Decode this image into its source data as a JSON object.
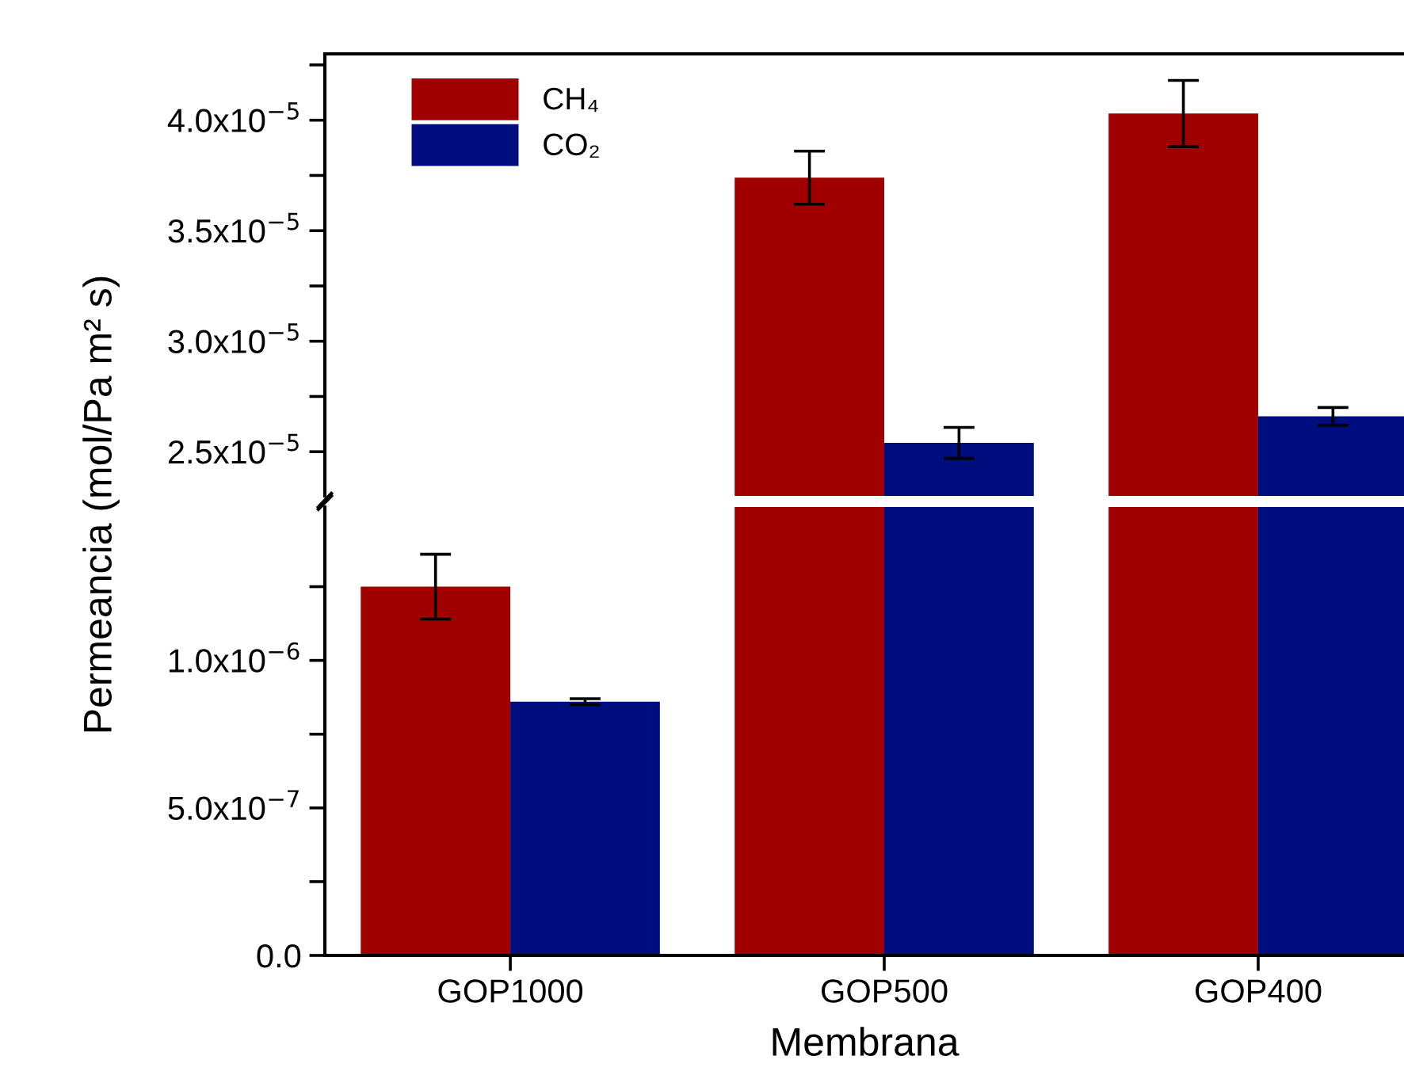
{
  "chart_data": [
    {
      "type": "bar",
      "ylabel": "Permeancia (mol/Pa m² s)",
      "categories": [
        null,
        null,
        null
      ],
      "legend": "top left",
      "grid": false,
      "tick_labels": "y",
      "series": [
        {
          "name": "CH₄",
          "color": "#a00000",
          "values": [
            null,
            3.74e-05,
            4.03e-05
          ],
          "errors": [
            null,
            1.2e-06,
            1.5e-06
          ]
        },
        {
          "name": "CO₂",
          "color": "#000d7f",
          "values": [
            null,
            2.54e-05,
            2.66e-05
          ],
          "errors": [
            null,
            7e-07,
            4e-07
          ]
        }
      ],
      "ylim": [
        2.3e-05,
        4.3e-05
      ],
      "yticks": [
        {
          "value": 2.5e-05,
          "label": "2.5x10$^{−5}$"
        },
        {
          "value": 2.75e-05,
          "label": null
        },
        {
          "value": 3e-05,
          "label": "3.0x10$^{−5}$"
        },
        {
          "value": 3.25e-05,
          "label": null
        },
        {
          "value": 3.5e-05,
          "label": "3.5x10$^{−5}$"
        },
        {
          "value": 3.75e-05,
          "label": null
        },
        {
          "value": 4e-05,
          "label": "4.0x10$^{−5}$"
        },
        {
          "value": 4.25e-05,
          "label": null
        }
      ]
    },
    {
      "type": "bar",
      "xlabel": "Membrana",
      "categories": [
        "GOP1000",
        "GOP500",
        "GOP400"
      ],
      "grid": false,
      "series": [
        {
          "color": "#a00000",
          "values": [
            1.25e-06,
            null,
            null
          ],
          "errors": [
            1.1e-07,
            null,
            null
          ]
        },
        {
          "color": "#000d7f",
          "values": [
            8.6e-07,
            null,
            null
          ],
          "errors": [
            1e-08,
            null,
            null
          ]
        }
      ],
      "ylim": [
        0,
        1.52e-06
      ],
      "yticks": [
        {
          "value": 0,
          "label": "0.0"
        },
        {
          "value": 2.5e-07,
          "label": null
        },
        {
          "value": 5e-07,
          "label": "5.0x10$^{−7}$"
        },
        {
          "value": 7.5e-07,
          "label": null
        },
        {
          "value": 1e-06,
          "label": "1.0x10$^{−6}$"
        },
        {
          "value": 1.25e-06,
          "label": null
        }
      ]
    }
  ]
}
